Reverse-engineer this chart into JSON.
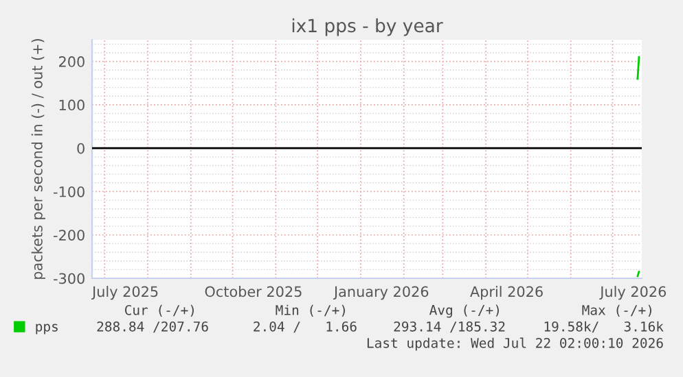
{
  "chart_data": {
    "type": "line",
    "title": "ix1 pps - by year",
    "ylabel": "packets per second in (-) / out (+)",
    "series": [
      {
        "name": "pps",
        "color": "#00cc00",
        "x": [
          "2026-07-19",
          "2026-07-20"
        ],
        "values": [
          160,
          210
        ]
      },
      {
        "color": "#00cc00",
        "x": [
          "2026-07-19",
          "2026-07-20"
        ],
        "values": [
          -295,
          -285
        ]
      }
    ],
    "xlim": [
      "2025-06-22",
      "2026-07-22"
    ],
    "xticks": [
      {
        "value": "2025-07-16",
        "label": "July 2025"
      },
      {
        "value": "2025-10-16",
        "label": "October 2025"
      },
      {
        "value": "2026-01-16",
        "label": "January 2026"
      },
      {
        "value": "2026-04-16",
        "label": "April 2026"
      },
      {
        "value": "2026-07-16",
        "label": "July 2026"
      }
    ],
    "ylim": [
      -300,
      250
    ],
    "yticks": [
      -300,
      -200,
      -100,
      0,
      100,
      200
    ],
    "ref_lines": [
      {
        "axis": "y",
        "value": 0,
        "color": "#000000"
      }
    ],
    "grid": true,
    "legend": "bottom",
    "annotations": [
      "Cur (-/+)",
      "Min (-/+)",
      "Avg (-/+)",
      "Max (-/+)",
      "288.84 /207.76",
      "2.04 /   1.66",
      "293.14 /185.32",
      "19.58k/   3.16k",
      "Last update: Wed Jul 22 02:00:10 2026"
    ]
  }
}
